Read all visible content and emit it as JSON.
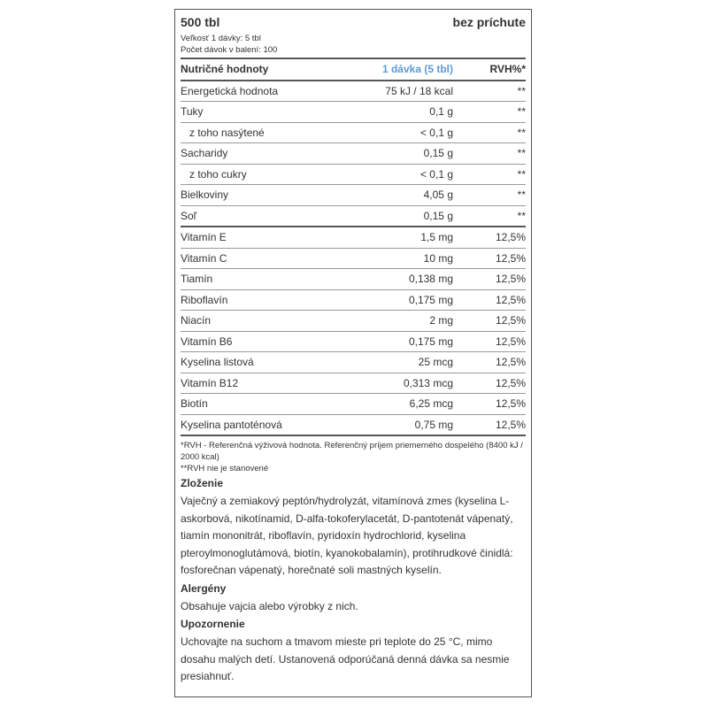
{
  "header": {
    "title": "500 tbl",
    "flavor": "bez príchute",
    "serving_size": "Veľkosť 1 dávky: 5 tbl",
    "servings": "Počet dávok v balení: 100"
  },
  "table": {
    "columns": [
      "Nutričné hodnoty",
      "1 dávka (5 tbl)",
      "RVH%*"
    ],
    "groups": [
      [
        [
          "Energetická hodnota",
          "75 kJ / 18 kcal",
          "**"
        ],
        [
          "Tuky",
          "0,1 g",
          "**"
        ],
        [
          "z toho nasýtené",
          "< 0,1 g",
          "**"
        ],
        [
          "Sacharidy",
          "0,15 g",
          "**"
        ],
        [
          "z toho cukry",
          "< 0,1 g",
          "**"
        ],
        [
          "Bielkoviny",
          "4,05 g",
          "**"
        ],
        [
          "Soľ",
          "0,15 g",
          "**"
        ]
      ],
      [
        [
          "Vitamín E",
          "1,5 mg",
          "12,5%"
        ],
        [
          "Vitamín C",
          "10 mg",
          "12,5%"
        ],
        [
          "Tiamín",
          "0,138 mg",
          "12,5%"
        ],
        [
          "Riboflavín",
          "0,175 mg",
          "12,5%"
        ],
        [
          "Niacín",
          "2 mg",
          "12,5%"
        ],
        [
          "Vitamín B6",
          "0,175 mg",
          "12,5%"
        ],
        [
          "Kyselina listová",
          "25 mcg",
          "12,5%"
        ],
        [
          "Vitamín B12",
          "0,313 mcg",
          "12,5%"
        ],
        [
          "Biotín",
          "6,25 mcg",
          "12,5%"
        ],
        [
          "Kyselina pantoténová",
          "0,75 mg",
          "12,5%"
        ]
      ]
    ]
  },
  "footnotes": [
    "*RVH - Referenčná výživová hodnota. Referenčný príjem priemerného dospelého (8400 kJ / 2000 kcal)",
    "**RVH nie je stanovené"
  ],
  "sections": [
    {
      "heading": "Zloženie",
      "text": "Vaječný a zemiakový peptón/hydrolyzát, vitamínová zmes (kyselina L-askorbová, nikotínamid, D-alfa-tokoferylacetát, D-pantotenát vápenatý, tiamín mononitrát, riboflavín, pyridoxín hydrochlorid, kyselina pteroylmonoglutámová, biotín, kyanokobalamín), protihrudkové činidlá: fosforečnan vápenatý, horečnaté soli mastných kyselín."
    },
    {
      "heading": "Alergény",
      "text": "Obsahuje vajcia alebo výrobky z nich."
    },
    {
      "heading": "Upozornenie",
      "text": "Uchovajte na suchom a tmavom mieste pri teplote do 25 °C, mimo dosahu malých detí. Ustanovená odporúčaná denná dávka sa nesmie presiahnuť."
    }
  ]
}
